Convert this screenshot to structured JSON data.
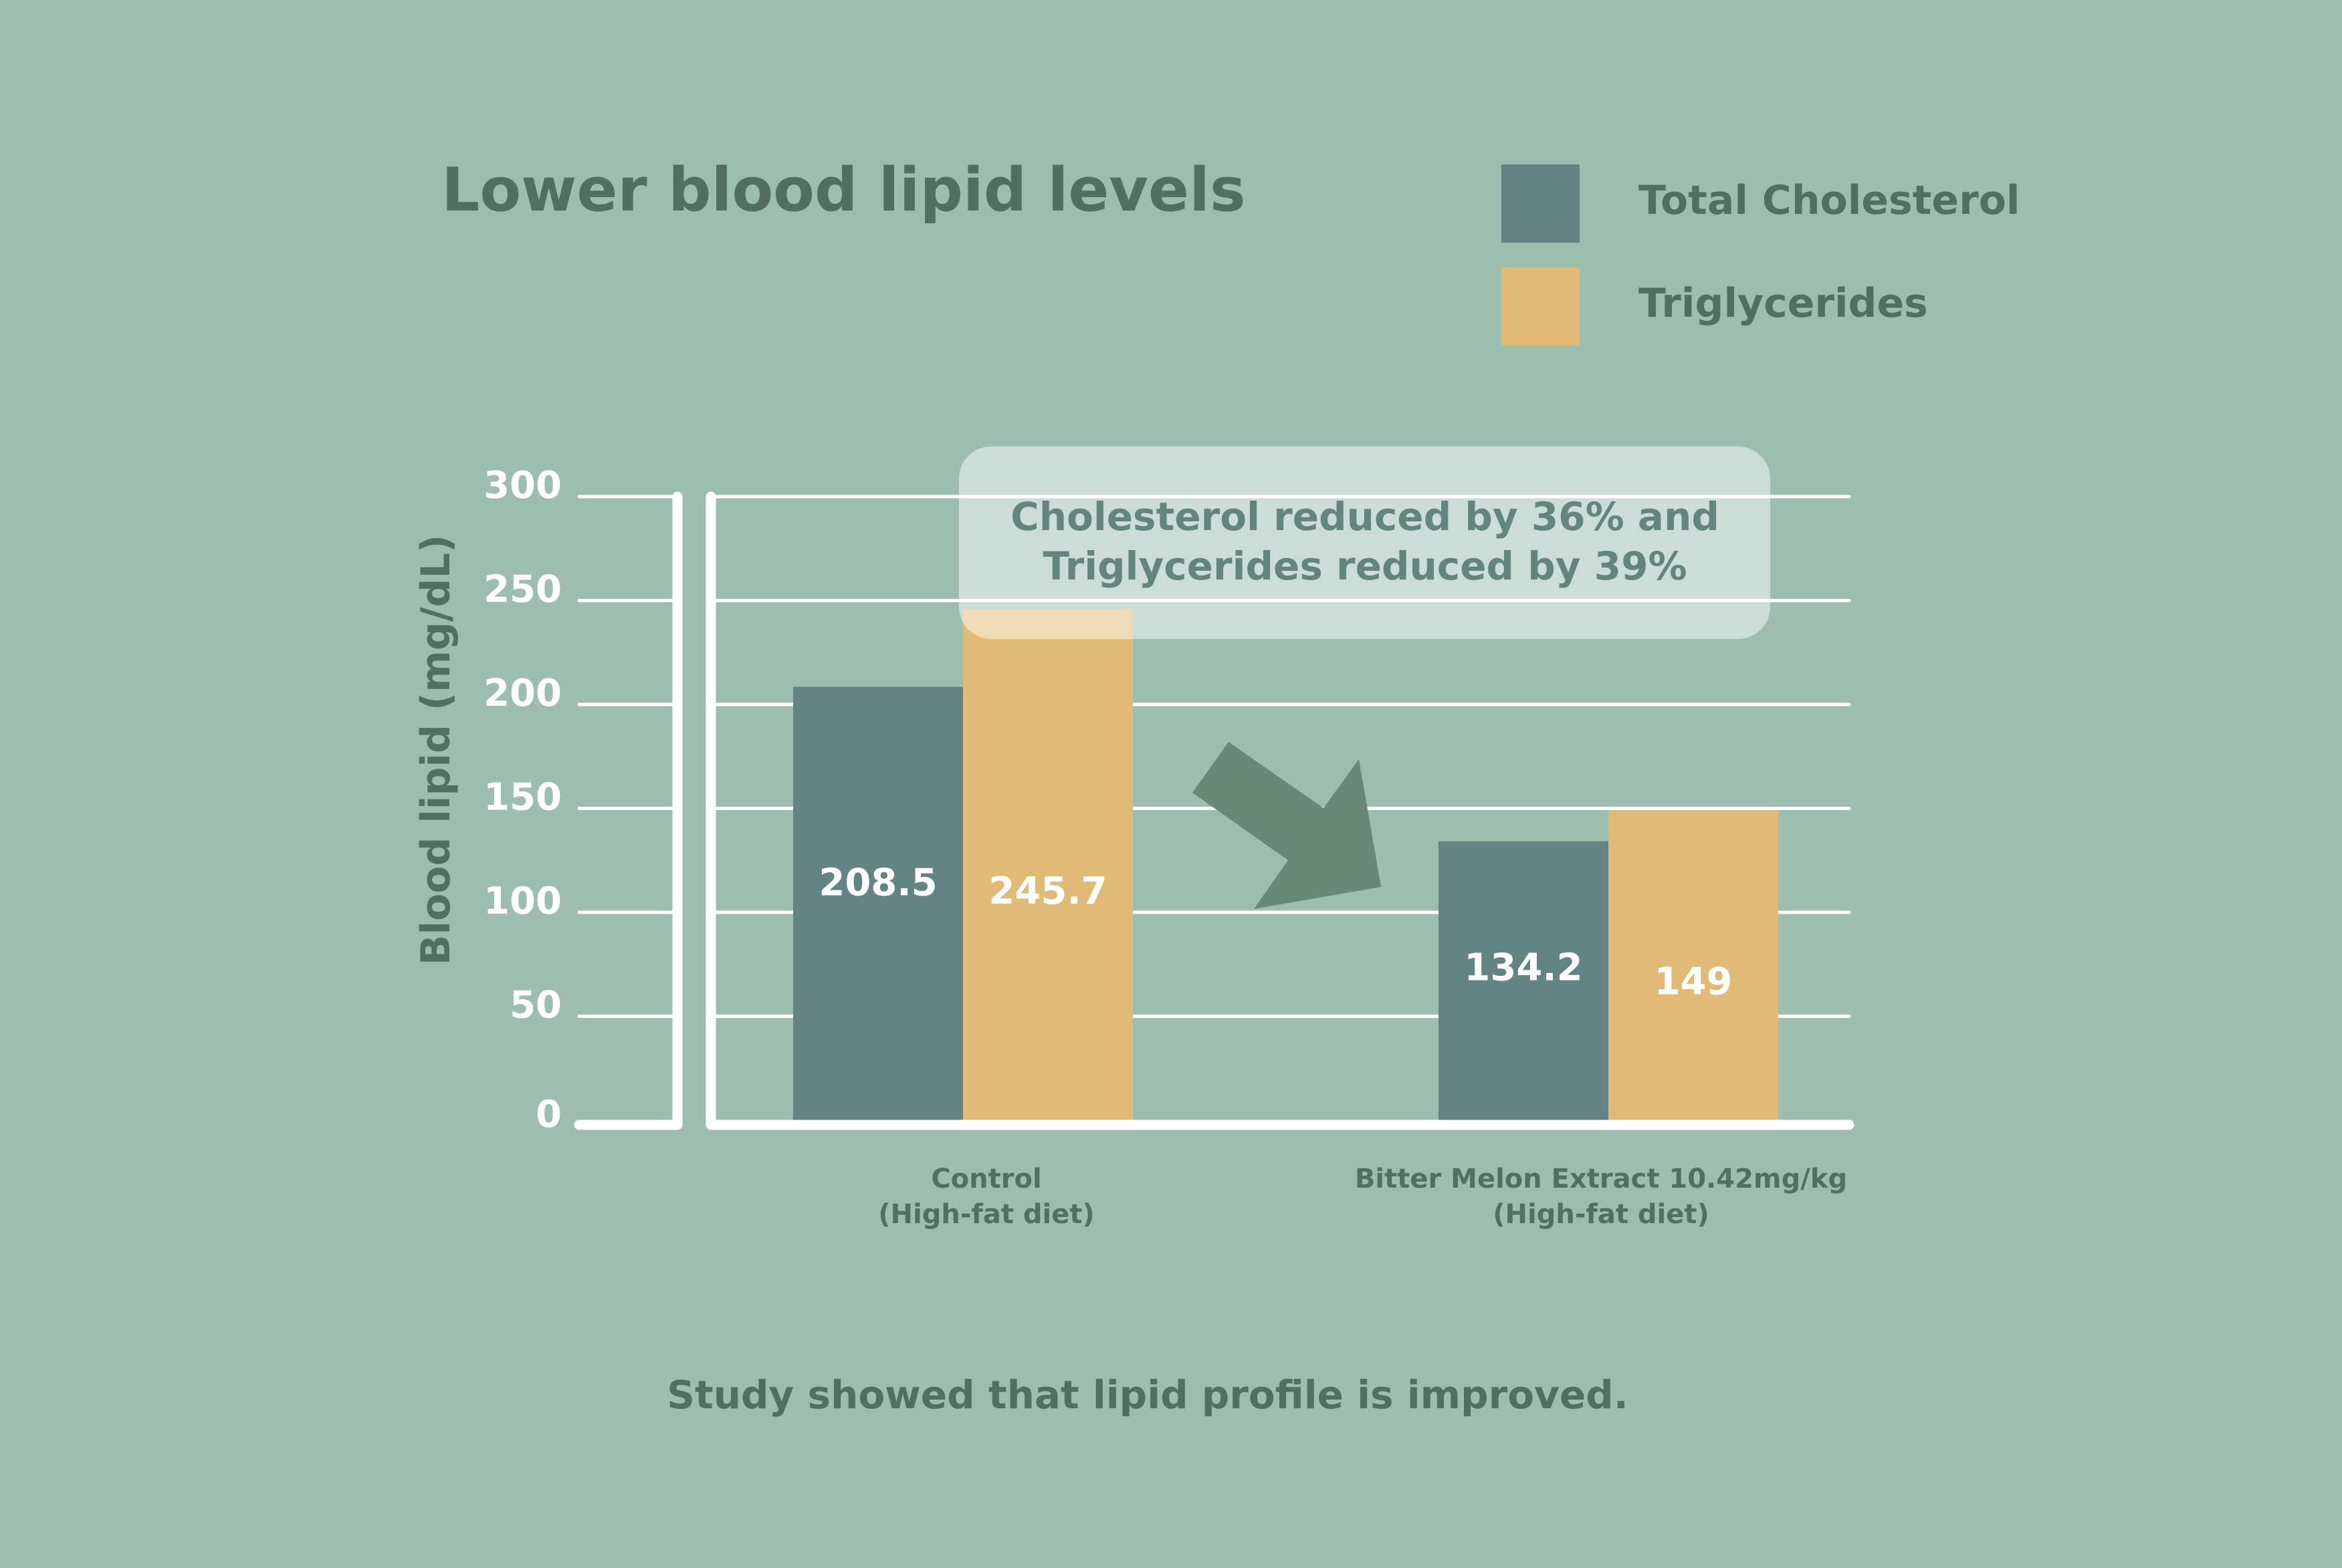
{
  "chart_data": {
    "type": "bar",
    "title": "Lower blood lipid levels",
    "ylabel": "Blood lipid (mg/dL)",
    "xlabel": "",
    "ylim": [
      0,
      300
    ],
    "yticks": [
      "0",
      "50",
      "100",
      "150",
      "200",
      "250",
      "300"
    ],
    "grid": true,
    "legend_position": "top-right",
    "categories": [
      {
        "line1": "Control",
        "line2": "(High-fat diet)"
      },
      {
        "line1": "Bitter Melon Extract 10.42mg/kg",
        "line2": "(High-fat diet)"
      }
    ],
    "series": [
      {
        "name": "Total Cholesterol",
        "color": "#628482",
        "values": [
          208.5,
          134.2
        ],
        "labels": [
          "208.5",
          "134.2"
        ]
      },
      {
        "name": "Triglycerides",
        "color": "#e2ba77",
        "values": [
          245.7,
          149
        ],
        "labels": [
          "245.7",
          "149"
        ]
      }
    ],
    "annotation": {
      "line1": "Cholesterol reduced by 36% and",
      "line2": "Triglycerides reduced by 39%"
    },
    "footnote": "Study showed that lipid profile is improved."
  },
  "colors": {
    "background": "#9dbdb1",
    "text": "#536f64",
    "arrow": "#688878",
    "grid": "#ffffff"
  }
}
